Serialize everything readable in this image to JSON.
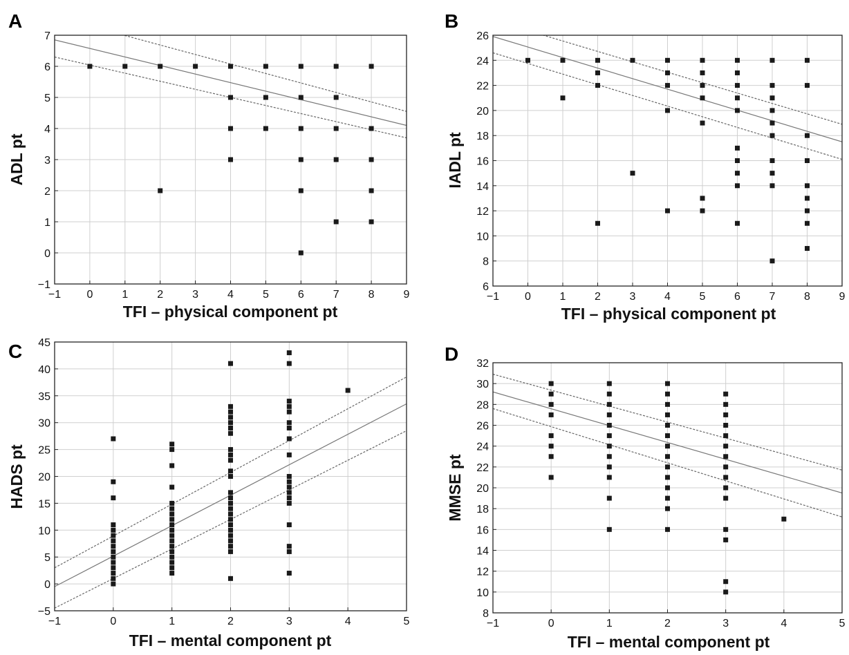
{
  "chart_data": [
    {
      "type": "scatter",
      "panel_label": "A",
      "xlabel": "TFI – physical component pt",
      "ylabel": "ADL pt",
      "xlim": [
        -1,
        9
      ],
      "ylim": [
        -1,
        7
      ],
      "xticks": [
        -1,
        0,
        1,
        2,
        3,
        4,
        5,
        6,
        7,
        8,
        9
      ],
      "yticks": [
        -1,
        0,
        1,
        2,
        3,
        4,
        5,
        6,
        7
      ],
      "xtick_labels": [
        "−1",
        "0",
        "1",
        "2",
        "3",
        "4",
        "5",
        "6",
        "7",
        "8",
        "9"
      ],
      "ytick_labels": [
        "−1",
        "0",
        "1",
        "2",
        "3",
        "4",
        "5",
        "6",
        "7"
      ],
      "grid": true,
      "points": [
        [
          0,
          6
        ],
        [
          1,
          6
        ],
        [
          2,
          6
        ],
        [
          2,
          2
        ],
        [
          3,
          6
        ],
        [
          4,
          6
        ],
        [
          4,
          5
        ],
        [
          4,
          4
        ],
        [
          4,
          3
        ],
        [
          5,
          6
        ],
        [
          5,
          5
        ],
        [
          5,
          4
        ],
        [
          6,
          6
        ],
        [
          6,
          5
        ],
        [
          6,
          4
        ],
        [
          6,
          3
        ],
        [
          6,
          2
        ],
        [
          6,
          0
        ],
        [
          7,
          6
        ],
        [
          7,
          5
        ],
        [
          7,
          4
        ],
        [
          7,
          3
        ],
        [
          7,
          1
        ],
        [
          8,
          6
        ],
        [
          8,
          4
        ],
        [
          8,
          3
        ],
        [
          8,
          2
        ],
        [
          8,
          1
        ]
      ],
      "fit_line": [
        [
          -1,
          6.85
        ],
        [
          9,
          4.1
        ]
      ],
      "ci_upper": [
        [
          -1,
          7.6
        ],
        [
          9,
          4.55
        ]
      ],
      "ci_lower": [
        [
          -1,
          6.3
        ],
        [
          9,
          3.7
        ]
      ]
    },
    {
      "type": "scatter",
      "panel_label": "B",
      "xlabel": "TFI – physical component pt",
      "ylabel": "IADL pt",
      "xlim": [
        -1,
        9
      ],
      "ylim": [
        6,
        26
      ],
      "xticks": [
        -1,
        0,
        1,
        2,
        3,
        4,
        5,
        6,
        7,
        8,
        9
      ],
      "yticks": [
        6,
        8,
        10,
        12,
        14,
        16,
        18,
        20,
        22,
        24,
        26
      ],
      "xtick_labels": [
        "−1",
        "0",
        "1",
        "2",
        "3",
        "4",
        "5",
        "6",
        "7",
        "8",
        "9"
      ],
      "ytick_labels": [
        "6",
        "8",
        "10",
        "12",
        "14",
        "16",
        "18",
        "20",
        "22",
        "24",
        "26"
      ],
      "grid": true,
      "points": [
        [
          0,
          24
        ],
        [
          1,
          24
        ],
        [
          1,
          21
        ],
        [
          2,
          24
        ],
        [
          2,
          23
        ],
        [
          2,
          22
        ],
        [
          2,
          11
        ],
        [
          3,
          24
        ],
        [
          3,
          15
        ],
        [
          4,
          24
        ],
        [
          4,
          23
        ],
        [
          4,
          22
        ],
        [
          4,
          20
        ],
        [
          4,
          12
        ],
        [
          5,
          24
        ],
        [
          5,
          23
        ],
        [
          5,
          22
        ],
        [
          5,
          21
        ],
        [
          5,
          19
        ],
        [
          5,
          13
        ],
        [
          5,
          12
        ],
        [
          6,
          24
        ],
        [
          6,
          23
        ],
        [
          6,
          22
        ],
        [
          6,
          21
        ],
        [
          6,
          20
        ],
        [
          6,
          17
        ],
        [
          6,
          16
        ],
        [
          6,
          15
        ],
        [
          6,
          14
        ],
        [
          6,
          11
        ],
        [
          7,
          24
        ],
        [
          7,
          22
        ],
        [
          7,
          21
        ],
        [
          7,
          20
        ],
        [
          7,
          19
        ],
        [
          7,
          18
        ],
        [
          7,
          16
        ],
        [
          7,
          15
        ],
        [
          7,
          14
        ],
        [
          7,
          8
        ],
        [
          8,
          24
        ],
        [
          8,
          22
        ],
        [
          8,
          18
        ],
        [
          8,
          16
        ],
        [
          8,
          14
        ],
        [
          8,
          13
        ],
        [
          8,
          12
        ],
        [
          8,
          11
        ],
        [
          8,
          9
        ]
      ],
      "fit_line": [
        [
          -1,
          25.9
        ],
        [
          9,
          17.5
        ]
      ],
      "ci_upper": [
        [
          -1,
          27.2
        ],
        [
          9,
          18.9
        ]
      ],
      "ci_lower": [
        [
          -1,
          24.6
        ],
        [
          9,
          16.1
        ]
      ]
    },
    {
      "type": "scatter",
      "panel_label": "C",
      "xlabel": "TFI – mental component pt",
      "ylabel": "HADS pt",
      "xlim": [
        -1,
        5
      ],
      "ylim": [
        -5,
        45
      ],
      "xticks": [
        -1,
        0,
        1,
        2,
        3,
        4,
        5
      ],
      "yticks": [
        -5,
        0,
        5,
        10,
        15,
        20,
        25,
        30,
        35,
        40,
        45
      ],
      "xtick_labels": [
        "−1",
        "0",
        "1",
        "2",
        "3",
        "4",
        "5"
      ],
      "ytick_labels": [
        "−5",
        "0",
        "5",
        "10",
        "15",
        "20",
        "25",
        "30",
        "35",
        "40",
        "45"
      ],
      "grid": true,
      "points": [
        [
          0,
          27
        ],
        [
          0,
          19
        ],
        [
          0,
          16
        ],
        [
          0,
          11
        ],
        [
          0,
          10
        ],
        [
          0,
          9
        ],
        [
          0,
          8
        ],
        [
          0,
          7
        ],
        [
          0,
          6
        ],
        [
          0,
          5
        ],
        [
          0,
          4
        ],
        [
          0,
          3
        ],
        [
          0,
          2
        ],
        [
          0,
          1
        ],
        [
          0,
          0
        ],
        [
          1,
          26
        ],
        [
          1,
          25
        ],
        [
          1,
          22
        ],
        [
          1,
          18
        ],
        [
          1,
          15
        ],
        [
          1,
          14
        ],
        [
          1,
          13
        ],
        [
          1,
          12
        ],
        [
          1,
          11
        ],
        [
          1,
          10
        ],
        [
          1,
          9
        ],
        [
          1,
          8
        ],
        [
          1,
          7
        ],
        [
          1,
          6
        ],
        [
          1,
          5
        ],
        [
          1,
          4
        ],
        [
          1,
          3
        ],
        [
          1,
          2
        ],
        [
          2,
          41
        ],
        [
          2,
          33
        ],
        [
          2,
          32
        ],
        [
          2,
          31
        ],
        [
          2,
          30
        ],
        [
          2,
          29
        ],
        [
          2,
          28
        ],
        [
          2,
          25
        ],
        [
          2,
          24
        ],
        [
          2,
          23
        ],
        [
          2,
          21
        ],
        [
          2,
          20
        ],
        [
          2,
          17
        ],
        [
          2,
          16
        ],
        [
          2,
          15
        ],
        [
          2,
          14
        ],
        [
          2,
          13
        ],
        [
          2,
          12
        ],
        [
          2,
          11
        ],
        [
          2,
          10
        ],
        [
          2,
          9
        ],
        [
          2,
          8
        ],
        [
          2,
          7
        ],
        [
          2,
          6
        ],
        [
          2,
          1
        ],
        [
          3,
          43
        ],
        [
          3,
          41
        ],
        [
          3,
          34
        ],
        [
          3,
          33
        ],
        [
          3,
          32
        ],
        [
          3,
          30
        ],
        [
          3,
          29
        ],
        [
          3,
          27
        ],
        [
          3,
          24
        ],
        [
          3,
          20
        ],
        [
          3,
          19
        ],
        [
          3,
          18
        ],
        [
          3,
          17
        ],
        [
          3,
          16
        ],
        [
          3,
          15
        ],
        [
          3,
          11
        ],
        [
          3,
          7
        ],
        [
          3,
          6
        ],
        [
          3,
          2
        ],
        [
          4,
          36
        ]
      ],
      "fit_line": [
        [
          -1,
          -0.5
        ],
        [
          5,
          33.5
        ]
      ],
      "ci_upper": [
        [
          -1,
          3
        ],
        [
          5,
          38.5
        ]
      ],
      "ci_lower": [
        [
          -1,
          -4.5
        ],
        [
          5,
          28.5
        ]
      ]
    },
    {
      "type": "scatter",
      "panel_label": "D",
      "xlabel": "TFI – mental component pt",
      "ylabel": "MMSE pt",
      "xlim": [
        -1,
        5
      ],
      "ylim": [
        8,
        32
      ],
      "xticks": [
        -1,
        0,
        1,
        2,
        3,
        4,
        5
      ],
      "yticks": [
        8,
        10,
        12,
        14,
        16,
        18,
        20,
        22,
        24,
        26,
        28,
        30,
        32
      ],
      "xtick_labels": [
        "−1",
        "0",
        "1",
        "2",
        "3",
        "4",
        "5"
      ],
      "ytick_labels": [
        "8",
        "10",
        "12",
        "14",
        "16",
        "18",
        "20",
        "22",
        "24",
        "26",
        "28",
        "30",
        "32"
      ],
      "grid": true,
      "points": [
        [
          0,
          30
        ],
        [
          0,
          29
        ],
        [
          0,
          28
        ],
        [
          0,
          27
        ],
        [
          0,
          25
        ],
        [
          0,
          24
        ],
        [
          0,
          23
        ],
        [
          0,
          21
        ],
        [
          1,
          30
        ],
        [
          1,
          29
        ],
        [
          1,
          28
        ],
        [
          1,
          27
        ],
        [
          1,
          26
        ],
        [
          1,
          25
        ],
        [
          1,
          24
        ],
        [
          1,
          23
        ],
        [
          1,
          22
        ],
        [
          1,
          21
        ],
        [
          1,
          19
        ],
        [
          1,
          16
        ],
        [
          2,
          30
        ],
        [
          2,
          29
        ],
        [
          2,
          28
        ],
        [
          2,
          27
        ],
        [
          2,
          26
        ],
        [
          2,
          25
        ],
        [
          2,
          24
        ],
        [
          2,
          23
        ],
        [
          2,
          22
        ],
        [
          2,
          21
        ],
        [
          2,
          20
        ],
        [
          2,
          19
        ],
        [
          2,
          18
        ],
        [
          2,
          16
        ],
        [
          3,
          29
        ],
        [
          3,
          28
        ],
        [
          3,
          27
        ],
        [
          3,
          26
        ],
        [
          3,
          25
        ],
        [
          3,
          24
        ],
        [
          3,
          23
        ],
        [
          3,
          22
        ],
        [
          3,
          21
        ],
        [
          3,
          20
        ],
        [
          3,
          19
        ],
        [
          3,
          16
        ],
        [
          3,
          15
        ],
        [
          3,
          11
        ],
        [
          3,
          10
        ],
        [
          4,
          17
        ]
      ],
      "fit_line": [
        [
          -1,
          29.2
        ],
        [
          5,
          19.5
        ]
      ],
      "ci_upper": [
        [
          -1,
          30.9
        ],
        [
          5,
          21.7
        ]
      ],
      "ci_lower": [
        [
          -1,
          27.6
        ],
        [
          5,
          17.2
        ]
      ]
    }
  ]
}
